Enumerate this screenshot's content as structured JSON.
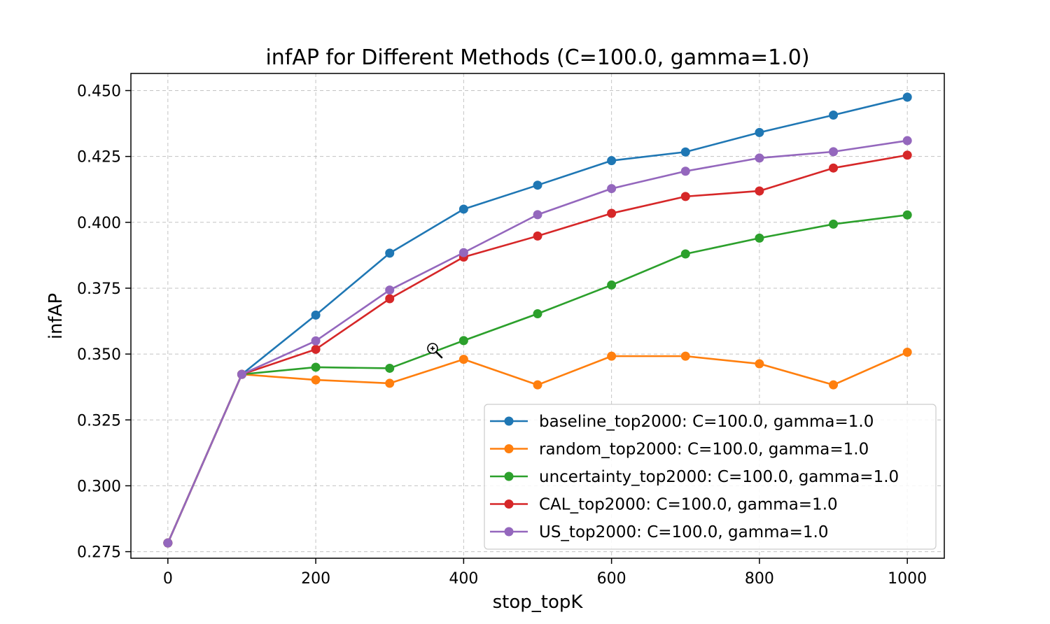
{
  "chart_data": {
    "type": "line",
    "title": "infAP for Different Methods (C=100.0, gamma=1.0)",
    "xlabel": "stop_topK",
    "ylabel": "infAP",
    "xlim": [
      -50,
      1050
    ],
    "ylim": [
      0.2725,
      0.4565
    ],
    "xticks": [
      0,
      200,
      400,
      600,
      800,
      1000
    ],
    "xtick_labels": [
      "0",
      "200",
      "400",
      "600",
      "800",
      "1000"
    ],
    "yticks": [
      0.275,
      0.3,
      0.325,
      0.35,
      0.375,
      0.4,
      0.425,
      0.45
    ],
    "ytick_labels": [
      "0.275",
      "0.300",
      "0.325",
      "0.350",
      "0.375",
      "0.400",
      "0.425",
      "0.450"
    ],
    "grid": true,
    "legend_position": "lower-right",
    "x": [
      0,
      100,
      200,
      300,
      400,
      500,
      600,
      700,
      800,
      900,
      1000
    ],
    "series": [
      {
        "name": "baseline_top2000: C=100.0, gamma=1.0",
        "color": "#1f77b4",
        "values": [
          0.2783,
          0.3423,
          0.3648,
          0.3883,
          0.405,
          0.4141,
          0.4234,
          0.4267,
          0.4341,
          0.4407,
          0.4475
        ]
      },
      {
        "name": "random_top2000: C=100.0, gamma=1.0",
        "color": "#ff7f0e",
        "values": [
          0.2783,
          0.3423,
          0.3402,
          0.3389,
          0.348,
          0.3383,
          0.3492,
          0.3492,
          0.3463,
          0.3383,
          0.3507
        ]
      },
      {
        "name": "uncertainty_top2000: C=100.0, gamma=1.0",
        "color": "#2ca02c",
        "values": [
          0.2783,
          0.3423,
          0.345,
          0.3446,
          0.3551,
          0.3653,
          0.3762,
          0.388,
          0.394,
          0.3993,
          0.4028
        ]
      },
      {
        "name": "CAL_top2000: C=100.0, gamma=1.0",
        "color": "#d62728",
        "values": [
          0.2783,
          0.3423,
          0.3518,
          0.371,
          0.3868,
          0.3948,
          0.4034,
          0.4098,
          0.4119,
          0.4206,
          0.4255
        ]
      },
      {
        "name": "US_top2000: C=100.0, gamma=1.0",
        "color": "#9467bd",
        "values": [
          0.2783,
          0.3423,
          0.355,
          0.3743,
          0.3885,
          0.4029,
          0.4128,
          0.4194,
          0.4244,
          0.4268,
          0.431
        ]
      }
    ]
  }
}
